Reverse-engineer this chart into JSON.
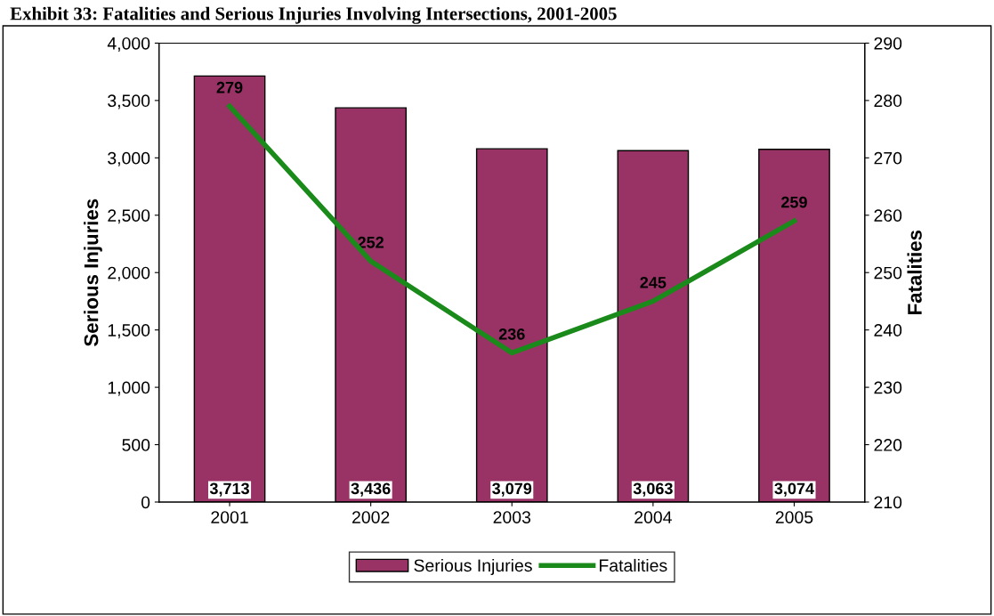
{
  "chart_data": {
    "type": "bar",
    "title": "Exhibit 33: Fatalities and Serious Injuries Involving Intersections, 2001-2005",
    "ylabel": "Serious Injuries",
    "y2label": "Fatalities",
    "categories": [
      "2001",
      "2002",
      "2003",
      "2004",
      "2005"
    ],
    "series": [
      {
        "name": "Serious Injuries",
        "color": "#993366",
        "values": [
          3713,
          3436,
          3079,
          3063,
          3074
        ],
        "value_labels": [
          "3,713",
          "3,436",
          "3,079",
          "3,063",
          "3,074"
        ]
      },
      {
        "name": "Fatalities",
        "type": "line",
        "axis": "y2",
        "color": "#1a8a1a",
        "values": [
          279,
          252,
          236,
          245,
          259
        ]
      }
    ],
    "ylim": [
      0,
      4000
    ],
    "yticks": [
      {
        "value": 0,
        "label": "0"
      },
      {
        "value": 500,
        "label": "500"
      },
      {
        "value": 1000,
        "label": "1,000"
      },
      {
        "value": 1500,
        "label": "1,500"
      },
      {
        "value": 2000,
        "label": "2,000"
      },
      {
        "value": 2500,
        "label": "2,500"
      },
      {
        "value": 3000,
        "label": "3,000"
      },
      {
        "value": 3500,
        "label": "3,500"
      },
      {
        "value": 4000,
        "label": "4,000"
      }
    ],
    "y2lim": [
      210,
      290
    ],
    "y2ticks": [
      210,
      220,
      230,
      240,
      250,
      260,
      270,
      280,
      290
    ],
    "data_labels": true,
    "legend": "bottom",
    "grid": false,
    "marker": "none",
    "line_style": "solid"
  }
}
